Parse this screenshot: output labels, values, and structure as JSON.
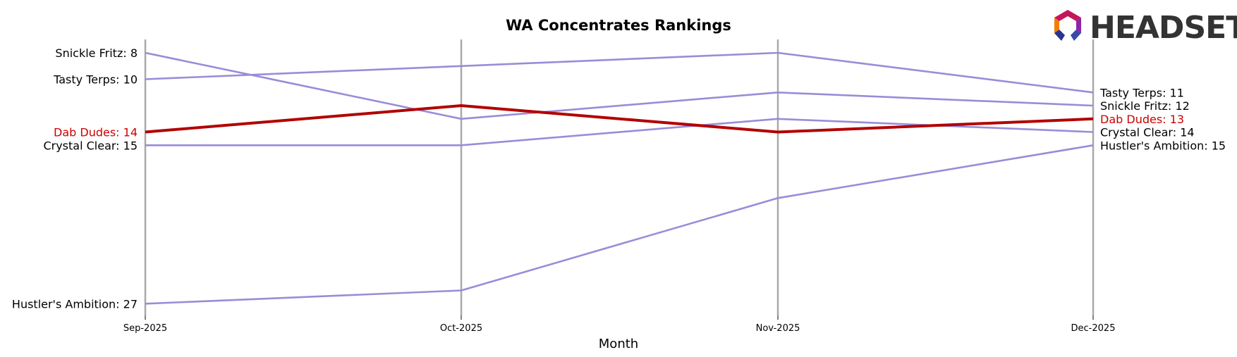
{
  "chart_data": {
    "type": "line",
    "title": "WA Concentrates Rankings",
    "xlabel": "Month",
    "ylabel": "",
    "categories": [
      "Sep-2025",
      "Oct-2025",
      "Nov-2025",
      "Dec-2025"
    ],
    "y_inverted": true,
    "ylim": [
      7,
      28
    ],
    "grid": "vertical lines at each month",
    "series": [
      {
        "name": "Snickle Fritz",
        "values": [
          8,
          13,
          11,
          12
        ],
        "highlight": false
      },
      {
        "name": "Tasty Terps",
        "values": [
          10,
          9,
          8,
          11
        ],
        "highlight": false
      },
      {
        "name": "Dab Dudes",
        "values": [
          14,
          12,
          14,
          13
        ],
        "highlight": true
      },
      {
        "name": "Crystal Clear",
        "values": [
          15,
          15,
          13,
          14
        ],
        "highlight": false
      },
      {
        "name": "Hustler's Ambition",
        "values": [
          27,
          26,
          19,
          15
        ],
        "highlight": false
      }
    ],
    "start_labels": [
      {
        "series": "Snickle Fritz",
        "text": "Snickle Fritz: 8"
      },
      {
        "series": "Tasty Terps",
        "text": "Tasty Terps: 10"
      },
      {
        "series": "Dab Dudes",
        "text": "Dab Dudes: 14"
      },
      {
        "series": "Crystal Clear",
        "text": "Crystal Clear: 15"
      },
      {
        "series": "Hustler's Ambition",
        "text": "Hustler's Ambition: 27"
      }
    ],
    "end_labels": [
      {
        "series": "Tasty Terps",
        "text": "Tasty Terps: 11"
      },
      {
        "series": "Snickle Fritz",
        "text": "Snickle Fritz: 12"
      },
      {
        "series": "Dab Dudes",
        "text": "Dab Dudes: 13"
      },
      {
        "series": "Crystal Clear",
        "text": "Crystal Clear: 14"
      },
      {
        "series": "Hustler's Ambition",
        "text": "Hustler's Ambition: 15"
      }
    ]
  },
  "colors": {
    "default_line": "#9a8cd8",
    "highlight_line": "#b20000",
    "gridline": "#a9a9a9",
    "text": "#000000",
    "highlight_text": "#cc0000"
  },
  "logo": {
    "text": "HEADSET",
    "icon": "headset-hexagon-logo-icon"
  }
}
